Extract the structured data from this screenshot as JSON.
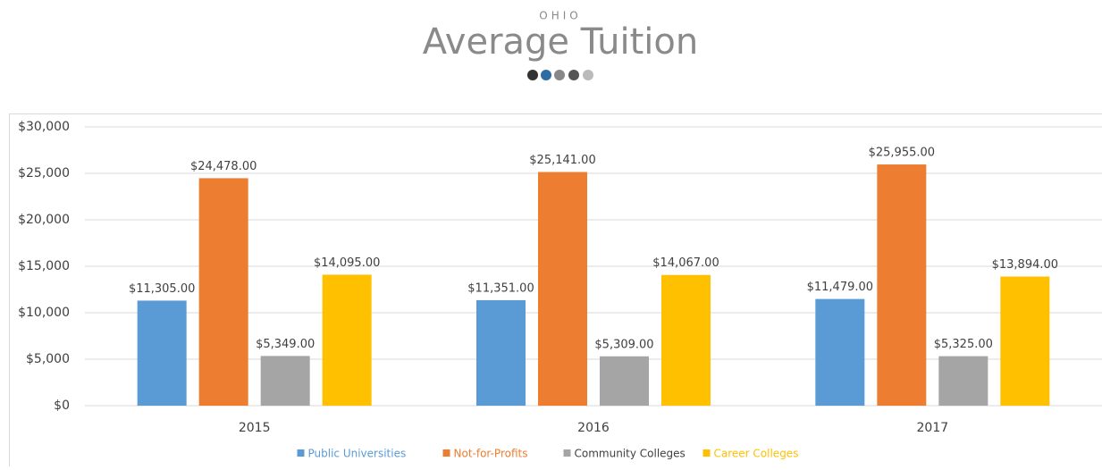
{
  "chart_data": {
    "type": "bar",
    "supertitle": "OHIO",
    "title": "Average Tuition",
    "categories": [
      "2015",
      "2016",
      "2017"
    ],
    "series": [
      {
        "name": "Public Universities",
        "color": "#5b9bd5",
        "values": [
          11305,
          11351,
          11479
        ],
        "value_labels": [
          "$11,305.00",
          "$11,351.00",
          "$11,479.00"
        ]
      },
      {
        "name": "Not-for-Profits",
        "color": "#ed7d31",
        "values": [
          24478,
          25141,
          25955
        ],
        "value_labels": [
          "$24,478.00",
          "$25,141.00",
          "$25,955.00"
        ]
      },
      {
        "name": "Community Colleges",
        "color": "#a5a5a5",
        "values": [
          5349,
          5309,
          5325
        ],
        "value_labels": [
          "$5,349.00",
          "$5,309.00",
          "$5,325.00"
        ]
      },
      {
        "name": "Career Colleges",
        "color": "#ffc000",
        "values": [
          14095,
          14067,
          13894
        ],
        "value_labels": [
          "$14,095.00",
          "$14,067.00",
          "$13,894.00"
        ]
      }
    ],
    "ylim": [
      0,
      30000
    ],
    "yticks": [
      {
        "value": 0,
        "label": "$0"
      },
      {
        "value": 5000,
        "label": "$5,000"
      },
      {
        "value": 10000,
        "label": "$10,000"
      },
      {
        "value": 15000,
        "label": "$15,000"
      },
      {
        "value": 20000,
        "label": "$20,000"
      },
      {
        "value": 25000,
        "label": "$25,000"
      },
      {
        "value": 30000,
        "label": "$30,000"
      }
    ],
    "grid": true,
    "legend": "bottom"
  }
}
